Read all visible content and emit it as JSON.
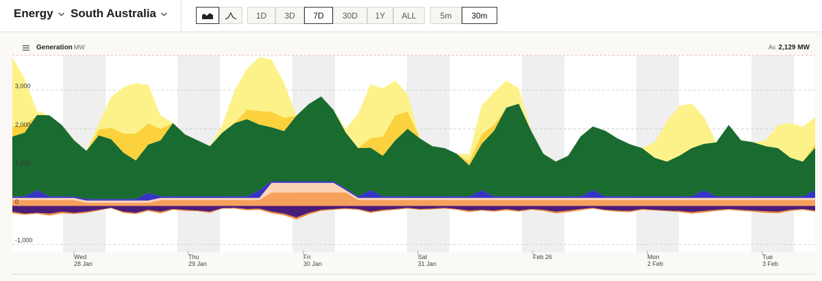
{
  "header": {
    "section": "Energy",
    "region": "South Australia",
    "chart_type_buttons": [
      "stacked-area-icon",
      "line-area-icon"
    ],
    "ranges": [
      "1D",
      "3D",
      "7D",
      "30D",
      "1Y",
      "ALL"
    ],
    "selected_range": "7D",
    "intervals": [
      "5m",
      "30m"
    ],
    "selected_interval": "30m"
  },
  "panel": {
    "title": "Generation",
    "unit": "MW",
    "avg_label": "Av.",
    "avg_value": "2,129 MW"
  },
  "chart_data": {
    "type": "area",
    "title": "Generation",
    "ylabel": "MW",
    "ylim": [
      -1200,
      3900
    ],
    "yticks": [
      -1000,
      0,
      1000,
      2000,
      3000
    ],
    "ytick_labels": [
      "-1,000",
      "0",
      "1,000",
      "2,000",
      "3,000"
    ],
    "x_ticks": [
      {
        "day": "Wed",
        "date": "28 Jan"
      },
      {
        "day": "Thu",
        "date": "29 Jan"
      },
      {
        "day": "Fri",
        "date": "30 Jan"
      },
      {
        "day": "Sat",
        "date": "31 Jan"
      },
      {
        "day": "",
        "date": "Feb 26"
      },
      {
        "day": "Mon",
        "date": "2 Feb"
      },
      {
        "day": "Tue",
        "date": "3 Feb"
      }
    ],
    "colors": {
      "wind": "#1a6b2f",
      "rooftop_solar": "#fdf28a",
      "utility_solar": "#fbd23e",
      "battery": "#3535c4",
      "gas": "#f5a05c",
      "gas_light": "#fcd3b5",
      "exports": "#4a1c7a",
      "pumps": "#f08a3a"
    },
    "series": [
      {
        "key": "wind",
        "values": [
          1550,
          1650,
          1950,
          2100,
          1850,
          1450,
          1250,
          1650,
          1550,
          1200,
          1000,
          1250,
          1450,
          1900,
          1600,
          1450,
          1300,
          1650,
          1900,
          2000,
          1700,
          1400,
          1300,
          1700,
          2000,
          2200,
          1850,
          1450,
          1250,
          1100,
          1050,
          1450,
          1750,
          1500,
          1300,
          1250,
          1100,
          800,
          1200,
          1700,
          2300,
          2400,
          1700,
          1100,
          900,
          1050,
          1550,
          1650,
          1700,
          1500,
          1350,
          1250,
          1000,
          900,
          1050,
          1250,
          1200,
          1400,
          1850,
          1450,
          1400,
          1300,
          1250,
          1000,
          900,
          1100
        ]
      },
      {
        "key": "utility_solar",
        "values": [
          250,
          200,
          0,
          0,
          0,
          0,
          0,
          150,
          300,
          500,
          700,
          550,
          300,
          0,
          0,
          0,
          0,
          0,
          0,
          250,
          350,
          400,
          350,
          0,
          0,
          0,
          0,
          0,
          0,
          250,
          500,
          650,
          450,
          0,
          0,
          0,
          0,
          100,
          250,
          150,
          0,
          0,
          0,
          0,
          0,
          0,
          0,
          0,
          0,
          0,
          0,
          0,
          0,
          0,
          0,
          0,
          0,
          0,
          0,
          0,
          0,
          0,
          0,
          0,
          0,
          100
        ]
      },
      {
        "key": "rooftop_solar",
        "values": [
          1800,
          1200,
          100,
          0,
          0,
          0,
          0,
          150,
          800,
          1200,
          1300,
          1000,
          350,
          0,
          0,
          0,
          0,
          200,
          850,
          1050,
          1400,
          1350,
          900,
          0,
          0,
          0,
          0,
          100,
          900,
          1400,
          1250,
          900,
          450,
          0,
          0,
          0,
          0,
          200,
          750,
          850,
          700,
          400,
          0,
          0,
          0,
          0,
          0,
          0,
          0,
          0,
          0,
          0,
          400,
          1050,
          1300,
          1150,
          700,
          0,
          0,
          0,
          0,
          150,
          600,
          900,
          900,
          700
        ]
      }
    ],
    "neg_series": [
      {
        "key": "exports",
        "values": [
          150,
          200,
          180,
          200,
          150,
          180,
          150,
          100,
          50,
          150,
          180,
          100,
          150,
          80,
          100,
          120,
          150,
          60,
          50,
          80,
          70,
          150,
          200,
          300,
          180,
          100,
          80,
          60,
          80,
          150,
          100,
          80,
          50,
          80,
          70,
          50,
          80,
          120,
          100,
          120,
          80,
          120,
          80,
          100,
          150,
          120,
          80,
          50,
          100,
          120,
          130,
          80,
          100,
          120,
          130,
          160,
          130,
          100,
          80,
          100,
          120,
          140,
          150,
          100,
          80,
          120
        ]
      },
      {
        "key": "pumps",
        "values": [
          40,
          30,
          20,
          50,
          40,
          30,
          30,
          20,
          10,
          30,
          30,
          30,
          40,
          20,
          30,
          20,
          30,
          10,
          20,
          30,
          30,
          40,
          40,
          50,
          40,
          30,
          20,
          20,
          20,
          30,
          30,
          20,
          20,
          20,
          20,
          20,
          20,
          40,
          20,
          30,
          30,
          30,
          20,
          30,
          40,
          40,
          30,
          20,
          20,
          30,
          30,
          20,
          20,
          20,
          30,
          40,
          40,
          30,
          20,
          30,
          30,
          40,
          40,
          30,
          20,
          30
        ]
      }
    ]
  }
}
